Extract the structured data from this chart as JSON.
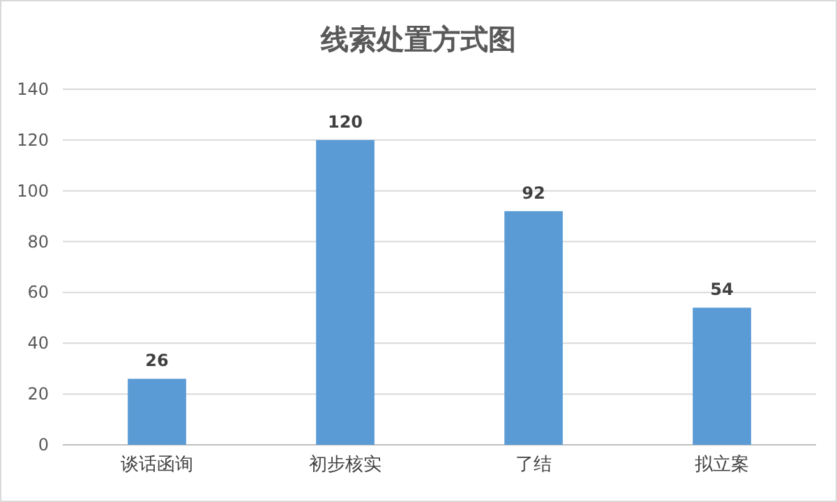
{
  "chart_data": {
    "type": "bar",
    "title": "线索处置方式图",
    "categories": [
      "谈话函询",
      "初步核实",
      "了结",
      "拟立案"
    ],
    "values": [
      26,
      120,
      92,
      54
    ],
    "color": "#5b9bd5",
    "ylim": [
      0,
      140
    ],
    "yticks": [
      0,
      20,
      40,
      60,
      80,
      100,
      120,
      140
    ],
    "grid": "y",
    "data_labels": true
  }
}
